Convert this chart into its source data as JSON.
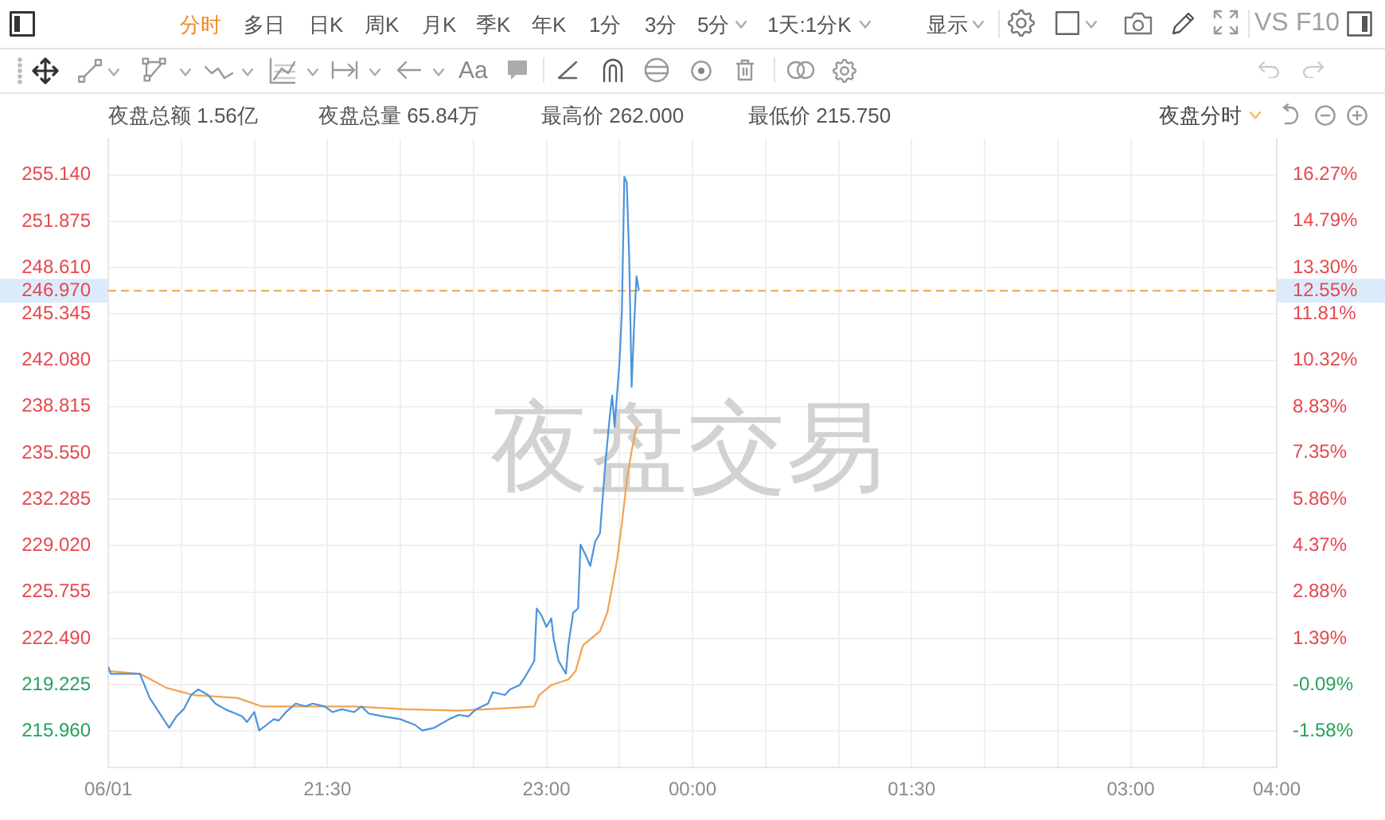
{
  "chart_data": {
    "type": "line",
    "annotations": [
      "分时",
      "多日",
      "日K",
      "周K",
      "月K",
      "季K",
      "年K",
      "1分",
      "3分",
      "5分",
      "1天:1分K",
      "显示",
      "VS",
      "F10",
      "Aa",
      "夜盘总额 1.56亿",
      "夜盘总量 65.84万",
      "最高价 262.000",
      "最低价 215.750",
      "夜盘分时",
      "夜盘交易",
      "12.55%"
    ],
    "series": [
      {
        "color": "#4b94dc",
        "x": [
          "--06-01T20:00",
          "--06-01T20:01",
          "--06-01T20:08",
          "--06-01T20:13",
          "--06-01T20:17",
          "--06-01T20:25",
          "--06-01T20:28",
          "--06-01T20:31",
          "--06-01T20:34",
          "--06-01T20:37",
          "--06-01T20:41",
          "--06-01T20:44",
          "--06-01T20:48",
          "--06-01T20:55",
          "--06-01T20:57",
          "--06-01T21:00",
          "--06-01T21:02",
          "--06-01T21:05",
          "--06-01T21:08",
          "--06-01T21:10",
          "--06-01T21:13",
          "--06-01T21:17",
          "--06-01T21:21",
          "--06-01T21:24",
          "--06-01T21:29",
          "--06-01T21:32",
          "--06-01T21:36",
          "--06-01T21:41",
          "--06-01T21:44",
          "--06-01T21:47",
          "--06-01T21:53",
          "--06-01T22:00",
          "--06-01T22:06",
          "--06-01T22:09",
          "--06-01T22:14",
          "--06-01T22:20",
          "--06-01T22:24",
          "--06-01T22:28",
          "--06-01T22:31",
          "--06-01T22:36",
          "--06-01T22:38",
          "--06-01T22:43",
          "--06-01T22:45",
          "--06-01T22:49",
          "--06-01T22:52",
          "--06-01T22:55",
          "--06-01T22:56",
          "--06-01T22:58",
          "--06-01T23:00",
          "--06-01T23:02",
          "--06-01T23:03",
          "--06-01T23:05",
          "--06-01T23:08",
          "--06-01T23:09",
          "--06-01T23:11",
          "--06-01T23:13",
          "--06-01T23:14",
          "--06-01T23:16",
          "--06-01T23:18",
          "--06-01T23:20",
          "--06-01T23:22",
          "--06-01T23:24",
          "--06-01T23:26",
          "--06-01T23:27",
          "--06-01T23:28",
          "--06-01T23:30",
          "--06-01T23:31",
          "--06-01T23:32",
          "--06-01T23:33",
          "--06-01T23:34",
          "--06-01T23:35",
          "--06-01T23:36",
          "--06-01T23:37",
          "--06-01T23:38"
        ],
        "values": [
          220.5,
          220.0,
          220.0,
          220.0,
          218.3,
          216.2,
          217.0,
          217.5,
          218.5,
          218.9,
          218.5,
          217.9,
          217.5,
          217.0,
          216.6,
          217.3,
          216.0,
          216.4,
          216.8,
          216.7,
          217.3,
          217.9,
          217.7,
          217.9,
          217.7,
          217.3,
          217.5,
          217.3,
          217.7,
          217.2,
          217.0,
          216.8,
          216.4,
          216.0,
          216.2,
          216.8,
          217.1,
          217.0,
          217.5,
          217.9,
          218.7,
          218.5,
          218.9,
          219.2,
          220.0,
          220.9,
          224.6,
          224.1,
          223.3,
          223.9,
          222.4,
          220.9,
          220.0,
          222.0,
          224.3,
          224.6,
          229.1,
          228.4,
          227.6,
          229.3,
          229.9,
          234.4,
          238.1,
          239.6,
          237.4,
          241.9,
          245.6,
          255.0,
          254.6,
          249.3,
          240.2,
          244.5,
          248.0,
          247.0
        ]
      },
      {
        "color": "#f3a24f",
        "x": [
          "--06-01T20:00",
          "--06-01T20:13",
          "--06-01T20:24",
          "--06-01T20:35",
          "--06-01T20:53",
          "--06-01T21:03",
          "--06-01T21:19",
          "--06-01T21:41",
          "--06-01T22:02",
          "--06-01T22:24",
          "--06-01T22:46",
          "--06-01T22:55",
          "--06-01T22:57",
          "--06-01T23:02",
          "--06-01T23:09",
          "--06-01T23:12",
          "--06-01T23:15",
          "--06-01T23:22",
          "--06-01T23:25",
          "--06-01T23:27",
          "--06-01T23:29",
          "--06-01T23:31",
          "--06-01T23:33",
          "--06-01T23:35",
          "--06-01T23:37"
        ],
        "values": [
          220.2,
          220.0,
          219.0,
          218.5,
          218.3,
          217.7,
          217.7,
          217.7,
          217.5,
          217.4,
          217.6,
          217.7,
          218.5,
          219.2,
          219.6,
          220.2,
          222.0,
          223.0,
          224.3,
          226.1,
          228.0,
          230.6,
          233.6,
          235.7,
          237.4
        ]
      }
    ],
    "xlim": [
      "--06-01T20:00",
      "--06-02T04:00"
    ],
    "xticks": [
      {
        "value": "--06-01T20:00",
        "label": "06/01"
      },
      {
        "value": "--06-01T20:30",
        "label": null
      },
      {
        "value": "--06-01T21:00",
        "label": null
      },
      {
        "value": "--06-01T21:30",
        "label": "21:30"
      },
      {
        "value": "--06-01T22:00",
        "label": null
      },
      {
        "value": "--06-01T22:30",
        "label": null
      },
      {
        "value": "--06-01T23:00",
        "label": "23:00"
      },
      {
        "value": "--06-01T23:30",
        "label": null
      },
      {
        "value": "--06-02T00:00",
        "label": "00:00"
      },
      {
        "value": "--06-02T00:30",
        "label": null
      },
      {
        "value": "--06-02T01:00",
        "label": null
      },
      {
        "value": "--06-02T01:30",
        "label": "01:30"
      },
      {
        "value": "--06-02T02:00",
        "label": null
      },
      {
        "value": "--06-02T02:30",
        "label": null
      },
      {
        "value": "--06-02T03:00",
        "label": "03:00"
      },
      {
        "value": "--06-02T03:30",
        "label": null
      },
      {
        "value": "--06-02T04:00",
        "label": "04:00"
      }
    ],
    "ylim": [
      213.4,
      257.7
    ],
    "yticks": [
      {
        "value": 255.14,
        "label": "255.140"
      },
      {
        "value": 251.875,
        "label": "251.875"
      },
      {
        "value": 248.61,
        "label": "248.610"
      },
      {
        "value": 245.345,
        "label": "245.345"
      },
      {
        "value": 242.08,
        "label": "242.080"
      },
      {
        "value": 238.815,
        "label": "238.815"
      },
      {
        "value": 235.55,
        "label": "235.550"
      },
      {
        "value": 232.285,
        "label": "232.285"
      },
      {
        "value": 229.02,
        "label": "229.020"
      },
      {
        "value": 225.755,
        "label": "225.755"
      },
      {
        "value": 222.49,
        "label": "222.490"
      },
      {
        "value": 219.225,
        "label": "219.225"
      },
      {
        "value": 215.96,
        "label": "215.960"
      }
    ],
    "y2lim": [
      -2.75,
      17.44
    ],
    "y2ticks": [
      {
        "value": 16.27,
        "label": "16.27%"
      },
      {
        "value": 14.79,
        "label": "14.79%"
      },
      {
        "value": 13.3,
        "label": "13.30%"
      },
      {
        "value": 11.81,
        "label": "11.81%"
      },
      {
        "value": 10.32,
        "label": "10.32%"
      },
      {
        "value": 8.83,
        "label": "8.83%"
      },
      {
        "value": 7.35,
        "label": "7.35%"
      },
      {
        "value": 5.86,
        "label": "5.86%"
      },
      {
        "value": 4.37,
        "label": "4.37%"
      },
      {
        "value": 2.88,
        "label": "2.88%"
      },
      {
        "value": 1.39,
        "label": "1.39%"
      },
      {
        "value": -0.09,
        "label": "-0.09%"
      },
      {
        "value": -1.58,
        "label": "-1.58%"
      }
    ],
    "grid": true,
    "ref_lines": [
      {
        "axis": "y",
        "value": 246.97,
        "label": "246.970",
        "color": "#f0a24a",
        "line_style": "dashed"
      }
    ]
  }
}
